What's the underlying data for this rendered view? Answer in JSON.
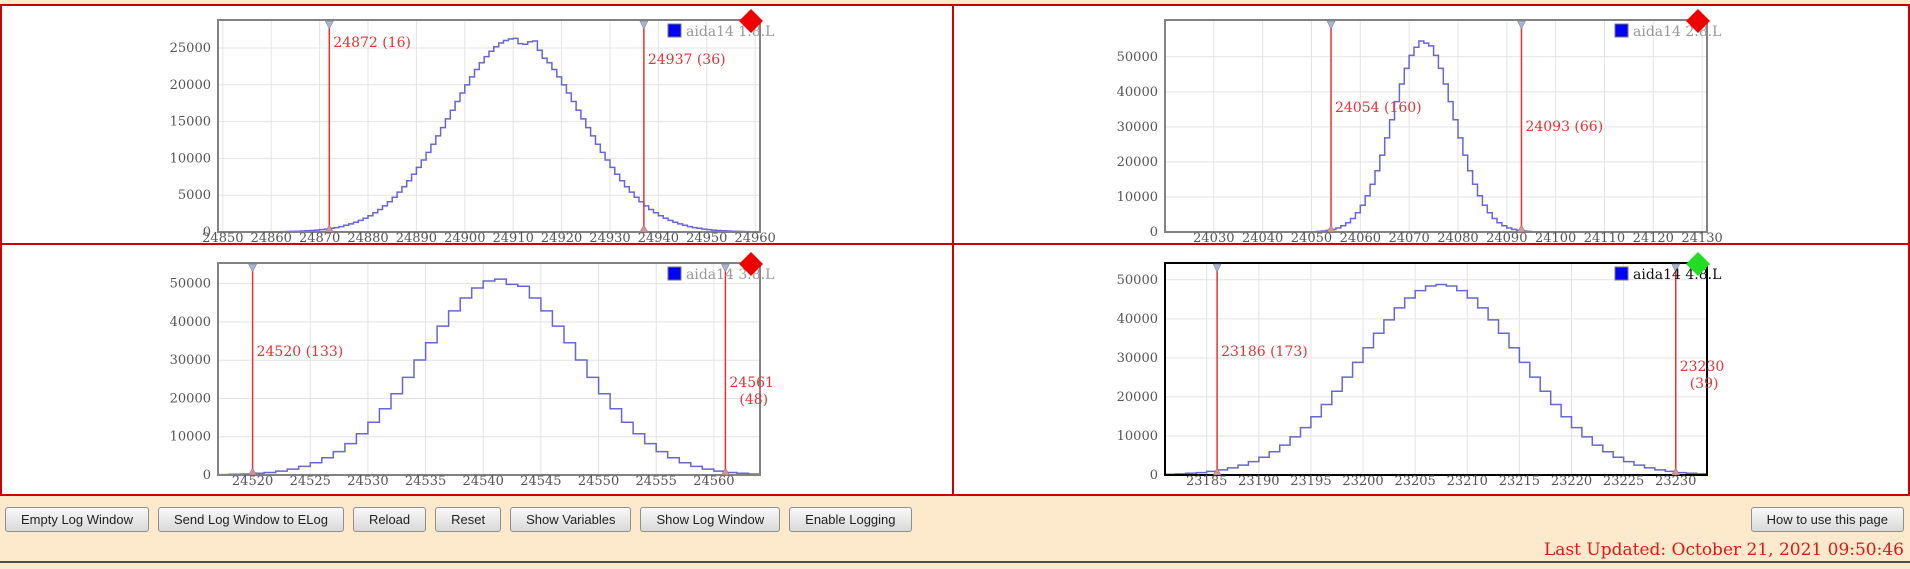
{
  "page": {
    "last_updated": "Last Updated: October 21, 2021 09:50:46",
    "background_color": "#fdeacd",
    "grid_border_color": "#cc0000"
  },
  "toolbar": {
    "buttons": [
      "Empty Log Window",
      "Send Log Window to ELog",
      "Reload",
      "Reset",
      "Show Variables",
      "Show Log Window",
      "Enable Logging"
    ],
    "help_button": "How to use this page"
  },
  "colors": {
    "histogram_line": "#6666d8",
    "cursor_red": "#e63232",
    "legend_marker_blue": "#0000ff",
    "axis_label_gray": "#555555",
    "legend_text_gray": "#999999",
    "plot_border_gray": "#828282",
    "gridline": "#e3e3e3"
  },
  "chart_data": [
    {
      "type": "histogram",
      "legend": "aida14 1.8.L",
      "selected": false,
      "status_diamond_color": "#ee0000",
      "line_color": "#6666d8",
      "legend_marker_color": "#0000ff",
      "legend_position": "top-right",
      "grid": true,
      "x_range": [
        24849,
        24961
      ],
      "y_range": [
        0,
        28800
      ],
      "x_ticks": [
        24850,
        24860,
        24870,
        24880,
        24890,
        24900,
        24910,
        24920,
        24930,
        24940,
        24950,
        24960
      ],
      "y_ticks": [
        0,
        5000,
        10000,
        15000,
        20000,
        25000
      ],
      "cursors": [
        {
          "value": 24872,
          "label_lines": [
            "24872 (16)"
          ],
          "dy": 27
        },
        {
          "value": 24937,
          "label_lines": [
            "24937 (36)"
          ],
          "dy": 44
        }
      ],
      "bins": {
        "x0": 24849,
        "bin_width": 1,
        "counts": [
          1,
          1,
          2,
          2,
          3,
          4,
          6,
          8,
          10,
          15,
          20,
          25,
          35,
          50,
          65,
          80,
          105,
          130,
          160,
          210,
          260,
          320,
          390,
          500,
          600,
          740,
          910,
          1100,
          1320,
          1580,
          1880,
          2210,
          2620,
          3050,
          3550,
          4100,
          4730,
          5420,
          6150,
          6970,
          7840,
          8780,
          9780,
          10810,
          11910,
          13050,
          14180,
          15360,
          16540,
          17730,
          18880,
          19990,
          21070,
          22070,
          22990,
          23830,
          24560,
          25170,
          25670,
          26010,
          26220,
          26300,
          25600,
          25500,
          25850,
          25950,
          24700,
          23600,
          22990,
          22070,
          21070,
          19990,
          18880,
          17730,
          16540,
          15360,
          14180,
          13050,
          11910,
          10810,
          9780,
          8780,
          7840,
          6970,
          6150,
          5420,
          4730,
          4100,
          3550,
          3050,
          2620,
          2210,
          1880,
          1580,
          1320,
          1100,
          910,
          740,
          600,
          500,
          390,
          320,
          260,
          210,
          160,
          130,
          105,
          80,
          65,
          50,
          40,
          30,
          25
        ]
      }
    },
    {
      "type": "histogram",
      "legend": "aida14 2.8.L",
      "selected": false,
      "status_diamond_color": "#ee0000",
      "line_color": "#6666d8",
      "legend_marker_color": "#0000ff",
      "legend_position": "top-right",
      "grid": true,
      "x_range": [
        24020,
        24131
      ],
      "y_range": [
        0,
        60500
      ],
      "x_ticks": [
        24030,
        24040,
        24050,
        24060,
        24070,
        24080,
        24090,
        24100,
        24110,
        24120,
        24130
      ],
      "y_ticks": [
        0,
        10000,
        20000,
        30000,
        40000,
        50000
      ],
      "cursors": [
        {
          "value": 24054,
          "label_lines": [
            "24054 (160)"
          ],
          "dy": 92
        },
        {
          "value": 24093,
          "label_lines": [
            "24093 (66)"
          ],
          "dy": 111
        }
      ],
      "bins": {
        "x0": 24020,
        "bin_width": 1,
        "counts": [
          0,
          0,
          0,
          0,
          0,
          0,
          0,
          0,
          0,
          0,
          0,
          0,
          0,
          0,
          0,
          0,
          0,
          0,
          0,
          0,
          0,
          0,
          0,
          0,
          2,
          4,
          8,
          15,
          28,
          52,
          95,
          165,
          280,
          460,
          740,
          1150,
          1770,
          2640,
          3850,
          5500,
          7650,
          10350,
          13600,
          17500,
          21950,
          26850,
          32050,
          37200,
          42250,
          46700,
          50400,
          52700,
          54500,
          53900,
          53100,
          50400,
          46700,
          42250,
          37200,
          32050,
          26850,
          21950,
          17500,
          13600,
          10350,
          7650,
          5500,
          3850,
          2640,
          1770,
          1150,
          740,
          460,
          280,
          165,
          95,
          52,
          28,
          15,
          8,
          4,
          2,
          1,
          0,
          0,
          0,
          0,
          0,
          0,
          0,
          0,
          0,
          0,
          0,
          0,
          0,
          0,
          0,
          0,
          0,
          0,
          0,
          0,
          0,
          0,
          0,
          0,
          0,
          0,
          0,
          0,
          0
        ]
      }
    },
    {
      "type": "histogram",
      "legend": "aida14 3.8.L",
      "selected": false,
      "status_diamond_color": "#ee0000",
      "line_color": "#6666d8",
      "legend_marker_color": "#0000ff",
      "legend_position": "top-right",
      "grid": true,
      "x_range": [
        24517,
        24564
      ],
      "y_range": [
        0,
        55400
      ],
      "x_ticks": [
        24520,
        24525,
        24530,
        24535,
        24540,
        24545,
        24550,
        24555,
        24560
      ],
      "y_ticks": [
        0,
        10000,
        20000,
        30000,
        40000,
        50000
      ],
      "cursors": [
        {
          "value": 24520,
          "label_lines": [
            "24520 (133)"
          ],
          "dy": 93
        },
        {
          "value": 24561,
          "label_lines": [
            "24561",
            "(48)"
          ],
          "dy": 124
        }
      ],
      "bins": {
        "x0": 24517,
        "bin_width": 1,
        "counts": [
          100,
          170,
          270,
          435,
          665,
          1020,
          1530,
          2250,
          3210,
          4490,
          6120,
          8210,
          10760,
          13770,
          17290,
          21220,
          25500,
          30040,
          34580,
          38910,
          42890,
          46260,
          48860,
          50700,
          51200,
          49800,
          49300,
          46260,
          42890,
          38910,
          34580,
          30040,
          25500,
          21220,
          17290,
          13770,
          10760,
          8210,
          6120,
          4490,
          3210,
          2250,
          1530,
          1020,
          665,
          435,
          270
        ]
      }
    },
    {
      "type": "histogram",
      "legend": "aida14 4.8.L",
      "selected": true,
      "status_diamond_color": "#22dd22",
      "line_color": "#6666d8",
      "legend_marker_color": "#0000ff",
      "legend_position": "top-right",
      "grid": true,
      "x_range": [
        23181,
        23233
      ],
      "y_range": [
        0,
        54300
      ],
      "x_ticks": [
        23185,
        23190,
        23195,
        23200,
        23205,
        23210,
        23215,
        23220,
        23225,
        23230
      ],
      "y_ticks": [
        0,
        10000,
        20000,
        30000,
        40000,
        50000
      ],
      "cursors": [
        {
          "value": 23186,
          "label_lines": [
            "23186 (173)"
          ],
          "dy": 93
        },
        {
          "value": 23230,
          "label_lines": [
            "23230",
            "(39)"
          ],
          "dy": 108
        }
      ],
      "bins": {
        "x0": 23181,
        "bin_width": 1,
        "counts": [
          185,
          283,
          425,
          625,
          910,
          1300,
          1830,
          2530,
          3430,
          4560,
          5950,
          7660,
          9760,
          12150,
          14930,
          18060,
          21470,
          25080,
          28840,
          32600,
          36310,
          39720,
          42800,
          45330,
          47240,
          48400,
          48800,
          48400,
          47240,
          45330,
          42800,
          39720,
          36310,
          32600,
          28840,
          25080,
          21470,
          18060,
          14930,
          12150,
          9760,
          7660,
          5950,
          4560,
          3430,
          2530,
          1830,
          1300,
          910,
          625,
          425,
          283,
          185
        ]
      }
    }
  ]
}
